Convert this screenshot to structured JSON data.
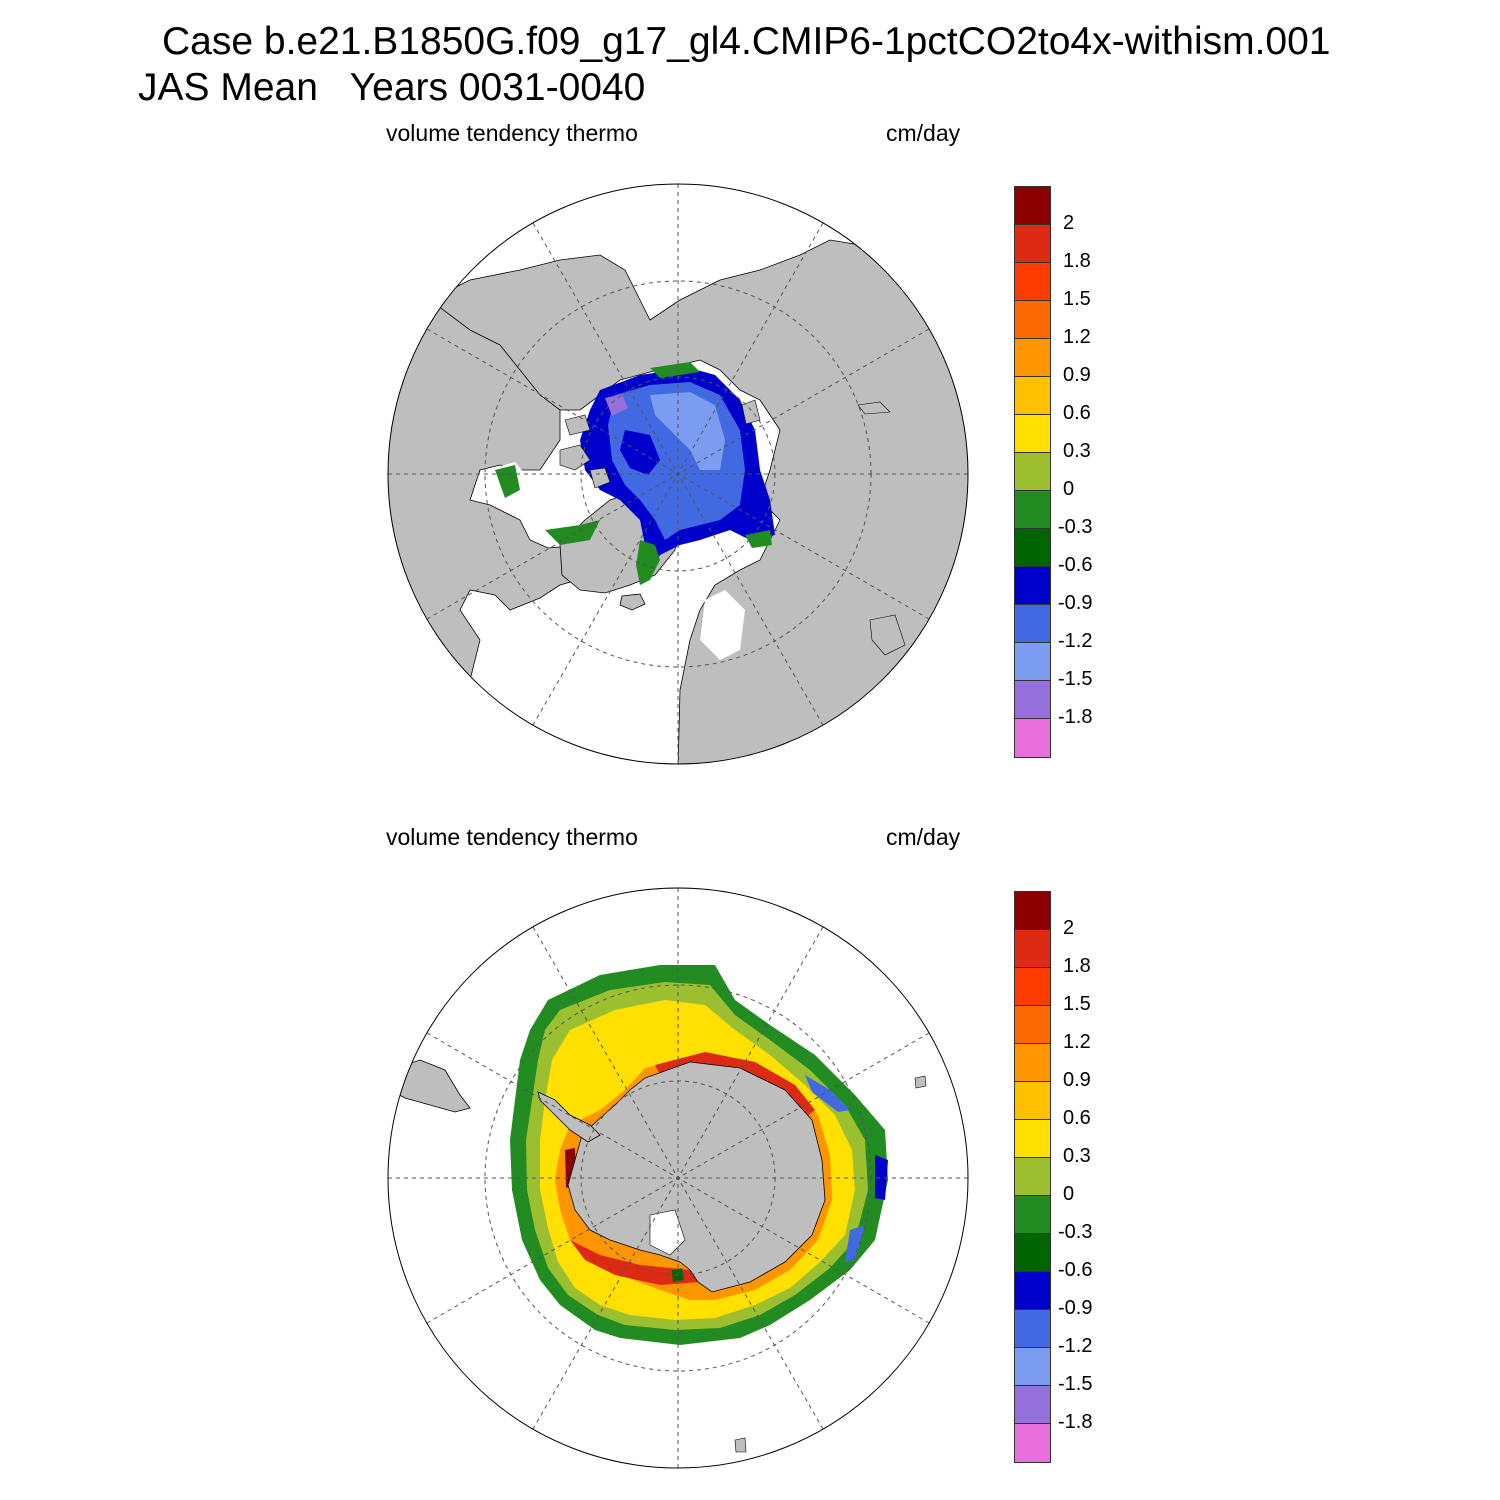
{
  "title": {
    "line1": "Case b.e21.B1850G.f09_g17_gl4.CMIP6-1pctCO2to4x-withism.001",
    "line2": "JAS Mean   Years 0031-0040"
  },
  "panels": [
    {
      "id": "north",
      "variable": "volume tendency thermo",
      "units": "cm/day",
      "hemisphere": "Arctic"
    },
    {
      "id": "south",
      "variable": "volume tendency thermo",
      "units": "cm/day",
      "hemisphere": "Antarctic"
    }
  ],
  "colorbar": {
    "labels": [
      "2",
      "1.8",
      "1.5",
      "1.2",
      "0.9",
      "0.6",
      "0.3",
      "0",
      "-0.3",
      "-0.6",
      "-0.9",
      "-1.2",
      "-1.5",
      "-1.8"
    ],
    "colors": [
      "#8b0000",
      "#dc2a14",
      "#ff3c00",
      "#ff6a00",
      "#ff9600",
      "#ffc000",
      "#ffe000",
      "#9cbf30",
      "#228b22",
      "#006400",
      "#0000cd",
      "#4169e1",
      "#7b9cf0",
      "#9370db",
      "#e770dd"
    ]
  },
  "colors": {
    "land": "#bebebe",
    "ocean": "#ffffff",
    "gridlines": "#555555"
  }
}
